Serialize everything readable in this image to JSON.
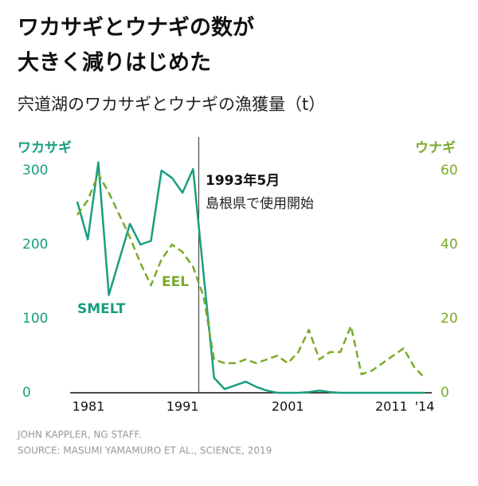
{
  "chart_data": {
    "type": "line",
    "title_lines": [
      "ワカサギとウナギの数が",
      "大きく減りはじめた"
    ],
    "subtitle": "宍道湖のワカサギとウナギの漁獲量（t）",
    "y_axis_label": "ワカサギ",
    "y2_axis_label": "ウナギ",
    "x": [
      1981,
      1982,
      1983,
      1984,
      1985,
      1986,
      1987,
      1988,
      1989,
      1990,
      1991,
      1992,
      1993,
      1994,
      1995,
      1996,
      1997,
      1998,
      1999,
      2000,
      2001,
      2002,
      2003,
      2004,
      2005,
      2006,
      2007,
      2008,
      2009,
      2010,
      2011,
      2012,
      2013,
      2014
    ],
    "series": [
      {
        "name": "SMELT",
        "color": "#1a9e80",
        "values": [
          258,
          207,
          311,
          132,
          180,
          228,
          200,
          205,
          300,
          290,
          270,
          302,
          160,
          20,
          5,
          10,
          15,
          8,
          3,
          0,
          0,
          0,
          1,
          3,
          1,
          0,
          0,
          0,
          0,
          0,
          0,
          0,
          0,
          0
        ]
      },
      {
        "name": "EEL",
        "color": "#7aaa2a",
        "axis": "y2",
        "dashed": true,
        "values": [
          48,
          52,
          59,
          54,
          48,
          42,
          35,
          29,
          36,
          40,
          38,
          34,
          26,
          9,
          8,
          8,
          9,
          8,
          9,
          10,
          8,
          11,
          17,
          9,
          11,
          11,
          18,
          5,
          6,
          8,
          10,
          12,
          7,
          4
        ]
      }
    ],
    "xlim": [
      1981,
      2014
    ],
    "xticks": [
      1981,
      1991,
      2001,
      {
        "value": 2011,
        "label": "2011"
      },
      {
        "value": 2014,
        "label": "'14"
      }
    ],
    "ylim": [
      0,
      300
    ],
    "yticks": [
      0,
      100,
      200,
      300
    ],
    "y2lim": [
      0,
      60
    ],
    "y2ticks": [
      0,
      20,
      40,
      60
    ],
    "annotation": {
      "x": 1993,
      "date": "1993年5月",
      "text": "島根県で使用開始"
    },
    "credits": [
      "JOHN KAPPLER, NG STAFF.",
      "SOURCE: MASUMI YAMAMURO ET AL., SCIENCE, 2019"
    ]
  }
}
